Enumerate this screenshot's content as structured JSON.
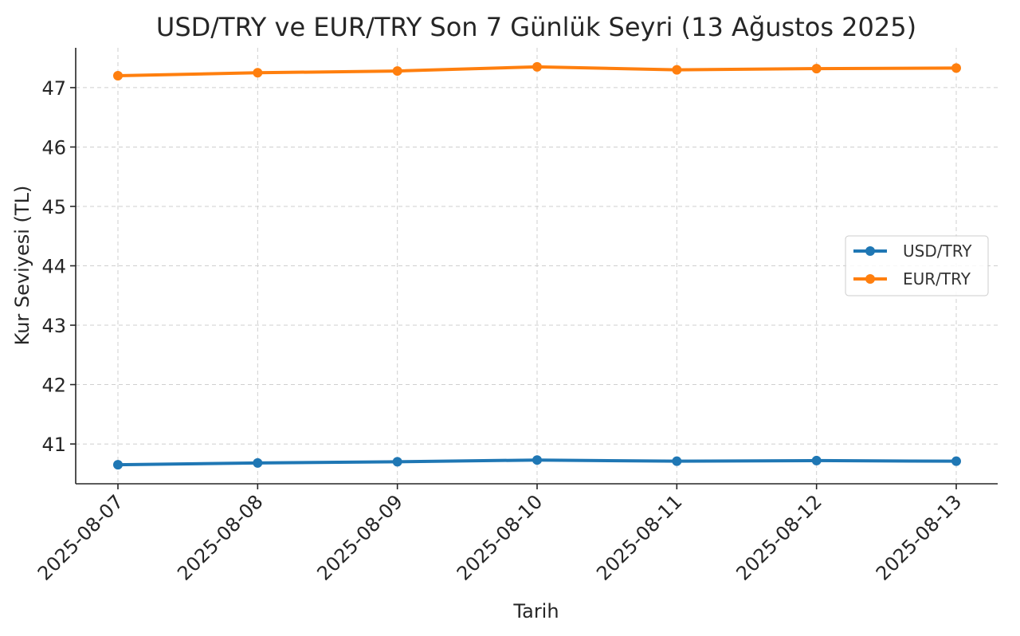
{
  "chart_data": {
    "type": "line",
    "title": "USD/TRY ve EUR/TRY Son 7 Günlük Seyri (13 Ağustos 2025)",
    "xlabel": "Tarih",
    "ylabel": "Kur Seviyesi (TL)",
    "categories": [
      "2025-08-07",
      "2025-08-08",
      "2025-08-09",
      "2025-08-10",
      "2025-08-11",
      "2025-08-12",
      "2025-08-13"
    ],
    "ylim": [
      40.33,
      47.67
    ],
    "yticks": [
      41,
      42,
      43,
      44,
      45,
      46,
      47
    ],
    "grid": true,
    "legend_position": "center-right",
    "series": [
      {
        "name": "USD/TRY",
        "color": "#1f77b4",
        "values": [
          40.65,
          40.68,
          40.7,
          40.73,
          40.71,
          40.72,
          40.71
        ]
      },
      {
        "name": "EUR/TRY",
        "color": "#ff7f0e",
        "values": [
          47.2,
          47.25,
          47.28,
          47.35,
          47.3,
          47.32,
          47.33
        ]
      }
    ]
  }
}
